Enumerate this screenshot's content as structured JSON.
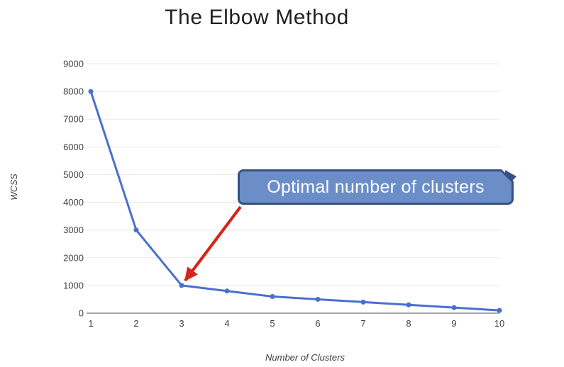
{
  "slide": {
    "title": "The Elbow Method",
    "background": "#ffffff"
  },
  "chart_data": {
    "type": "line",
    "title": "The Elbow Method",
    "xlabel": "Number of Clusters",
    "ylabel": "WCSS",
    "x": [
      1,
      2,
      3,
      4,
      5,
      6,
      7,
      8,
      9,
      10
    ],
    "values": [
      8000,
      3000,
      1000,
      800,
      600,
      500,
      400,
      300,
      200,
      100
    ],
    "ylim": [
      0,
      9000
    ],
    "ytick_step": 1000,
    "ytick_labels": [
      "0",
      "1000",
      "2000",
      "3000",
      "4000",
      "5000",
      "6000",
      "7000",
      "8000",
      "9000"
    ],
    "grid": "horizontal",
    "legend": "none",
    "series_color": "#4a6fd0",
    "gridline_color": "#e8e8e8",
    "axis_line_color": "#757575",
    "tick_label_color": "#3f3f3f"
  },
  "annotation": {
    "label": "Optimal number of clusters",
    "target_x": 3,
    "target_value": 1000,
    "box_fill": "#6b8ec9",
    "box_border": "#35517f",
    "text_color": "#ffffff",
    "arrow_color": "#d3261b"
  }
}
